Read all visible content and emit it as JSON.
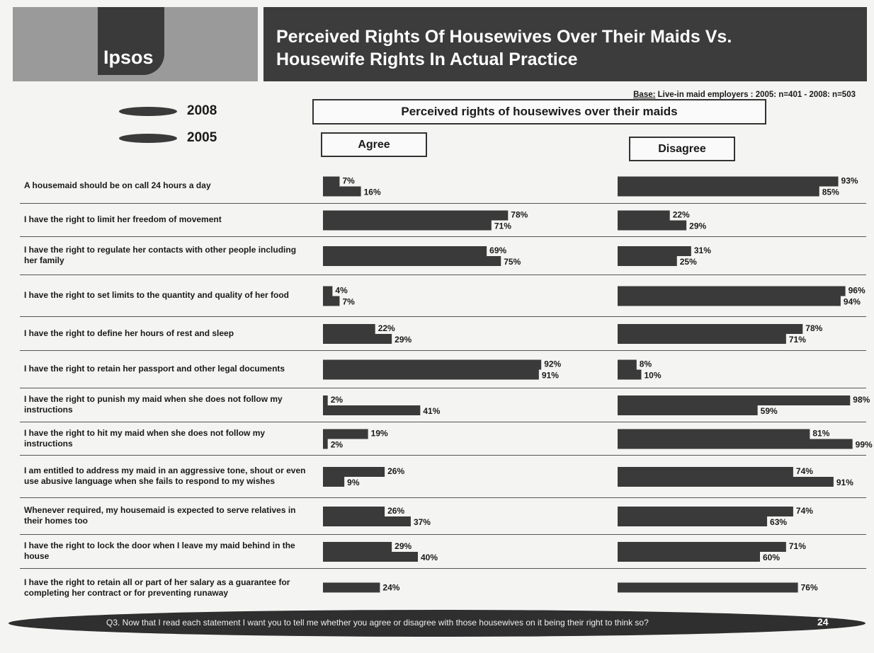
{
  "header": {
    "logo_text": "Ipsos",
    "title": "Perceived Rights Of Housewives Over Their Maids Vs.\nHousewife Rights In Actual Practice"
  },
  "base": {
    "label": "Base:",
    "text": "Live-in maid employers : 2005: n=401 - 2008: n=503"
  },
  "legend": [
    {
      "label": "2008",
      "color": "#3a3a3a"
    },
    {
      "label": "2005",
      "color": "#3a3a3a"
    }
  ],
  "box_title": "Perceived rights of housewives over their maids",
  "agree_label": "Agree",
  "disagree_label": "Disagree",
  "chart_data": {
    "type": "bar",
    "series": [
      {
        "name": "2008"
      },
      {
        "name": "2005"
      }
    ],
    "categories": [
      "A housemaid should be on call 24 hours a day",
      "I have the right to limit her freedom of movement",
      "I have the right to regulate her contacts with other people including her family",
      "I have the right to set limits to the quantity and quality of her food",
      "I have the right to define her hours of rest and sleep",
      "I have the right to retain her passport and other legal documents",
      "I have the right to punish my maid when she does not follow my instructions",
      "I have the right to hit my maid when she does not follow my instructions",
      "I am entitled to address my maid in an aggressive tone, shout or even use abusive language when she fails to respond to my wishes",
      "Whenever required, my housemaid is expected to serve relatives in their homes too",
      "I have the right to lock the door when I leave my maid behind in the house",
      "I have the right to retain all or part of her salary as a guarantee for completing her contract or for preventing runaway"
    ],
    "agree": {
      "2008": [
        7,
        78,
        69,
        4,
        22,
        92,
        2,
        19,
        26,
        26,
        29,
        24
      ],
      "2005": [
        16,
        71,
        75,
        7,
        29,
        91,
        41,
        2,
        9,
        37,
        40,
        null
      ]
    },
    "disagree": {
      "2008": [
        93,
        22,
        31,
        96,
        78,
        8,
        98,
        81,
        74,
        74,
        71,
        76
      ],
      "2005": [
        85,
        29,
        25,
        94,
        71,
        10,
        59,
        99,
        91,
        63,
        60,
        null
      ]
    },
    "value_suffix": "%",
    "xlim": [
      0,
      100
    ]
  },
  "footer": {
    "question": "Q3. Now that I read each statement I want you to tell me whether you agree or disagree with those housewives on it being their right to think so?",
    "page": "24"
  }
}
